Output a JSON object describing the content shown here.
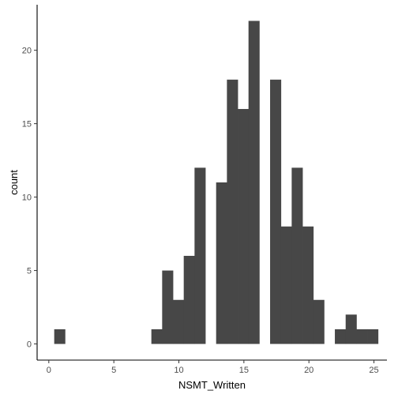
{
  "chart_data": {
    "type": "bar",
    "xlabel": "NSMT_Written",
    "ylabel": "count",
    "xlim": [
      -0.9,
      26.0
    ],
    "ylim": [
      -1.1,
      23.1
    ],
    "xticks": [
      0,
      5,
      10,
      15,
      20,
      25
    ],
    "yticks": [
      0,
      5,
      10,
      15,
      20
    ],
    "binwidth": 0.83,
    "bins": [
      {
        "x": 0.83,
        "count": 1
      },
      {
        "x": 1.66,
        "count": 0
      },
      {
        "x": 2.49,
        "count": 0
      },
      {
        "x": 3.32,
        "count": 0
      },
      {
        "x": 4.15,
        "count": 0
      },
      {
        "x": 4.98,
        "count": 0
      },
      {
        "x": 5.81,
        "count": 0
      },
      {
        "x": 6.64,
        "count": 0
      },
      {
        "x": 7.47,
        "count": 0
      },
      {
        "x": 8.3,
        "count": 1
      },
      {
        "x": 9.13,
        "count": 5
      },
      {
        "x": 9.96,
        "count": 3
      },
      {
        "x": 10.79,
        "count": 6
      },
      {
        "x": 11.62,
        "count": 12
      },
      {
        "x": 12.45,
        "count": 0
      },
      {
        "x": 13.28,
        "count": 11
      },
      {
        "x": 14.11,
        "count": 18
      },
      {
        "x": 14.94,
        "count": 16
      },
      {
        "x": 15.77,
        "count": 22
      },
      {
        "x": 16.6,
        "count": 0
      },
      {
        "x": 17.43,
        "count": 18
      },
      {
        "x": 18.26,
        "count": 8
      },
      {
        "x": 19.09,
        "count": 12
      },
      {
        "x": 19.92,
        "count": 8
      },
      {
        "x": 20.75,
        "count": 3
      },
      {
        "x": 21.58,
        "count": 0
      },
      {
        "x": 22.41,
        "count": 1
      },
      {
        "x": 23.24,
        "count": 2
      },
      {
        "x": 24.07,
        "count": 1
      },
      {
        "x": 24.9,
        "count": 1
      }
    ],
    "grid": false,
    "legend": "none",
    "bar_color": "#474747",
    "axis_color": "#000000",
    "tick_label_color": "#4d4d4d"
  }
}
